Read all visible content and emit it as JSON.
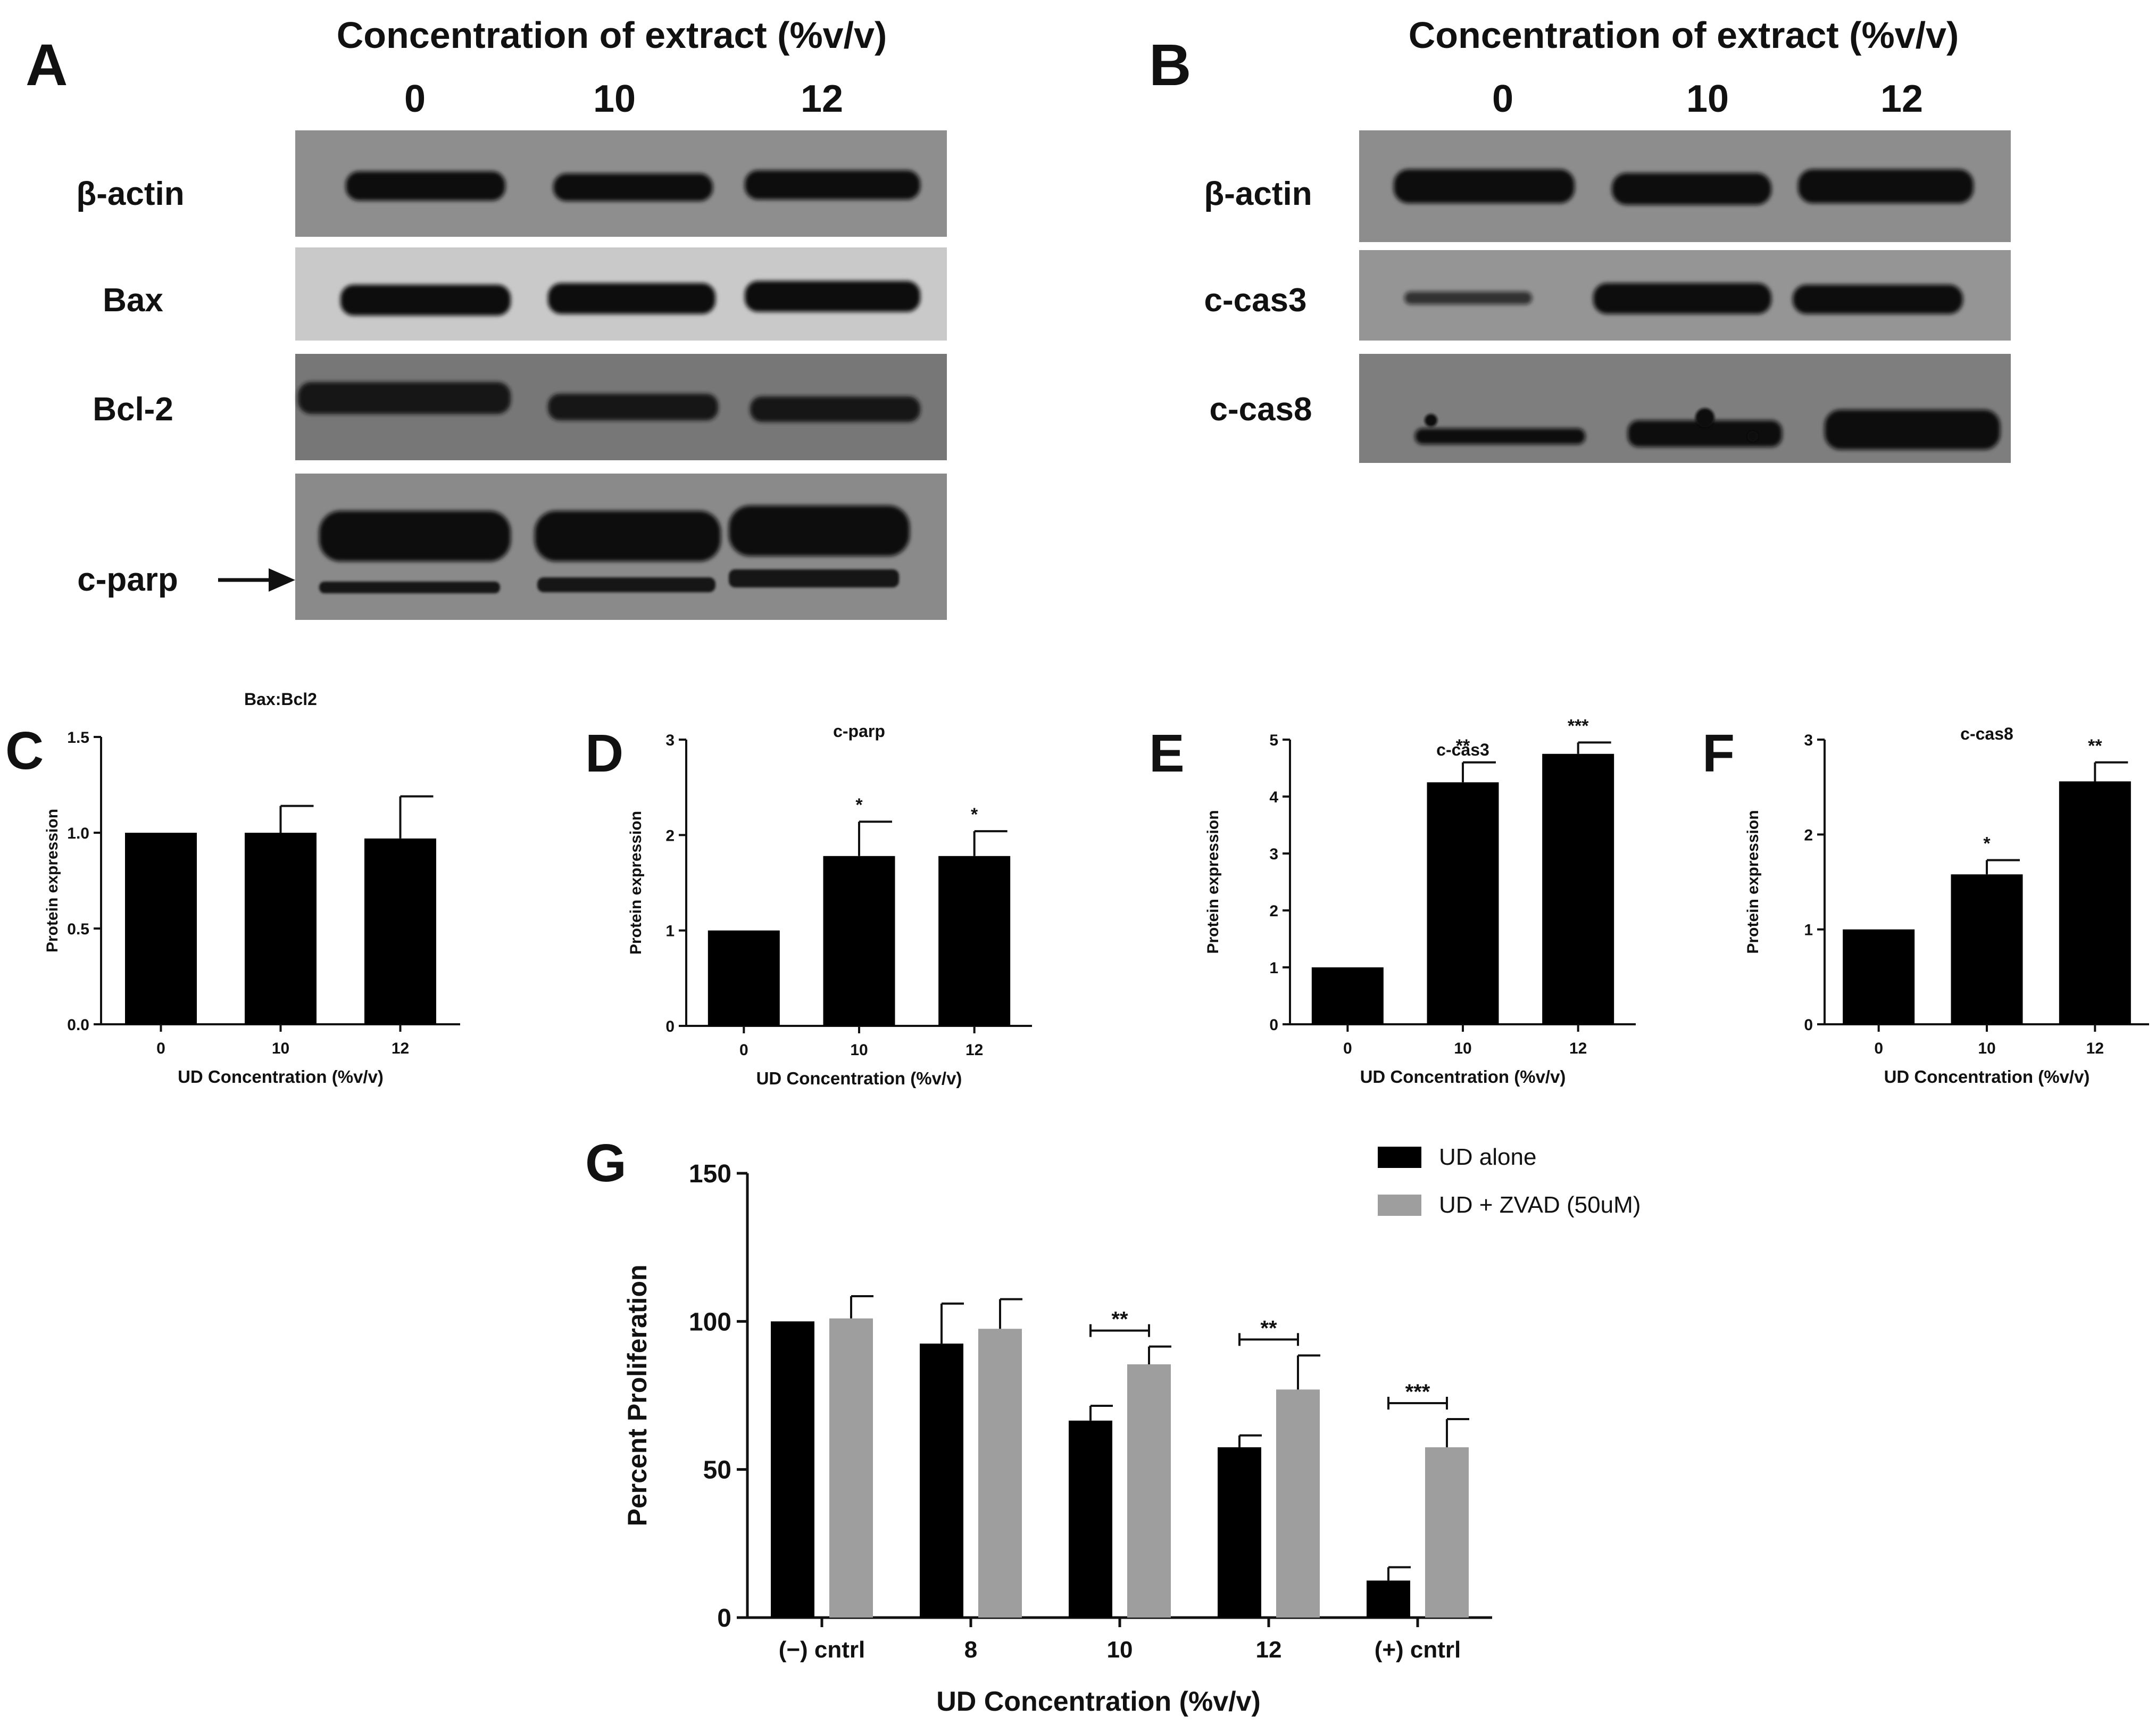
{
  "blots": {
    "A": {
      "letter": "A",
      "header": "Concentration of extract (%v/v)",
      "lanes": [
        "0",
        "10",
        "12"
      ],
      "rows": [
        "β-actin",
        "Bax",
        "Bcl-2",
        "c-parp"
      ]
    },
    "B": {
      "letter": "B",
      "header": "Concentration of extract (%v/v)",
      "lanes": [
        "0",
        "10",
        "12"
      ],
      "rows": [
        "β-actin",
        "c-cas3",
        "c-cas8"
      ]
    }
  },
  "chart_data": [
    {
      "id": "C",
      "type": "bar",
      "letter": "C",
      "title": "Bax:Bcl2",
      "ylabel": "Protein expression",
      "xlabel": "UD Concentration (%v/v)",
      "categories": [
        "0",
        "10",
        "12"
      ],
      "values": [
        1.0,
        1.0,
        0.97
      ],
      "errors": [
        0,
        0.14,
        0.22
      ],
      "significance": [
        "",
        "",
        ""
      ],
      "ylim": [
        0,
        1.5
      ],
      "yticks": [
        "0.0",
        "0.5",
        "1.0",
        "1.5"
      ]
    },
    {
      "id": "D",
      "type": "bar",
      "letter": "D",
      "title": "c-parp",
      "ylabel": "Protein expression",
      "xlabel": "UD Concentration (%v/v)",
      "categories": [
        "0",
        "10",
        "12"
      ],
      "values": [
        1.0,
        1.78,
        1.78
      ],
      "errors": [
        0,
        0.36,
        0.26
      ],
      "significance": [
        "",
        "*",
        "*"
      ],
      "ylim": [
        0,
        3
      ],
      "yticks": [
        "0",
        "1",
        "2",
        "3"
      ]
    },
    {
      "id": "E",
      "type": "bar",
      "letter": "E",
      "title": "c-cas3",
      "ylabel": "Protein expression",
      "xlabel": "UD Concentration (%v/v)",
      "categories": [
        "0",
        "10",
        "12"
      ],
      "values": [
        1.0,
        4.25,
        4.75
      ],
      "errors": [
        0,
        0.35,
        0.2
      ],
      "significance": [
        "",
        "**",
        "***"
      ],
      "ylim": [
        0,
        5
      ],
      "yticks": [
        "0",
        "1",
        "2",
        "3",
        "4",
        "5"
      ]
    },
    {
      "id": "F",
      "type": "bar",
      "letter": "F",
      "title": "c-cas8",
      "ylabel": "Protein expression",
      "xlabel": "UD Concentration (%v/v)",
      "categories": [
        "0",
        "10",
        "12"
      ],
      "values": [
        1.0,
        1.58,
        2.56
      ],
      "errors": [
        0,
        0.15,
        0.2
      ],
      "significance": [
        "",
        "*",
        "**"
      ],
      "ylim": [
        0,
        3
      ],
      "yticks": [
        "0",
        "1",
        "2",
        "3"
      ]
    },
    {
      "id": "G",
      "type": "bar",
      "letter": "G",
      "title": "",
      "ylabel": "Percent Proliferation",
      "xlabel": "UD Concentration (%v/v)",
      "categories": [
        "(−) cntrl",
        "8",
        "10",
        "12",
        "(+) cntrl"
      ],
      "series": [
        {
          "name": "UD alone",
          "color": "#000000",
          "values": [
            100,
            92.5,
            66.5,
            57.5,
            12.5
          ],
          "errors": [
            0,
            13.5,
            5,
            4,
            4.5
          ]
        },
        {
          "name": "UD + ZVAD (50uM)",
          "color": "#9e9e9e",
          "values": [
            101,
            97.5,
            85.5,
            77,
            57.5
          ],
          "errors": [
            7.5,
            10,
            6,
            11.5,
            9.5
          ]
        }
      ],
      "brackets": [
        {
          "category": "10",
          "label": "**"
        },
        {
          "category": "12",
          "label": "**"
        },
        {
          "category": "(+) cntrl",
          "label": "***"
        }
      ],
      "ylim": [
        0,
        150
      ],
      "yticks": [
        "0",
        "50",
        "100",
        "150"
      ],
      "legend_position": "top-right"
    }
  ]
}
